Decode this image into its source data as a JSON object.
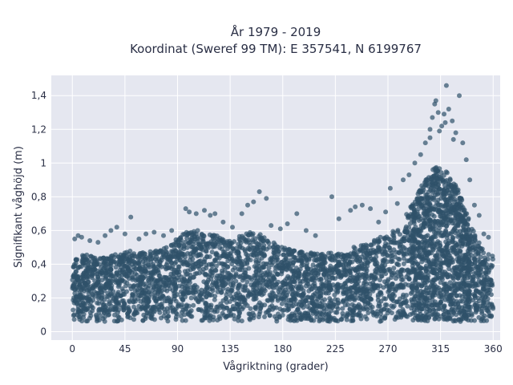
{
  "chart_data": {
    "type": "scatter",
    "title_line1": "År 1979 - 2019",
    "title_line2": "Koordinat (Sweref 99 TM): E 357541, N 6199767",
    "xlabel": "Vågriktning (grader)",
    "ylabel": "Signifikant våghöjd (m)",
    "xlim": [
      -18,
      366
    ],
    "ylim": [
      -0.05,
      1.52
    ],
    "x_ticks": [
      0,
      45,
      90,
      135,
      180,
      225,
      270,
      315,
      360
    ],
    "x_tick_labels": [
      "0",
      "45",
      "90",
      "135",
      "180",
      "225",
      "270",
      "315",
      "360"
    ],
    "y_ticks": [
      0,
      0.2,
      0.4,
      0.6,
      0.8,
      1.0,
      1.2,
      1.4
    ],
    "y_tick_labels": [
      "0",
      "0,2",
      "0,4",
      "0,6",
      "0,8",
      "1",
      "1,2",
      "1,4"
    ],
    "grid": true,
    "background_color": "#e5e7f0",
    "marker_color": "#2f5169",
    "marker_opacity": 0.7,
    "envelope": {
      "x": [
        0,
        10,
        20,
        30,
        40,
        50,
        60,
        70,
        80,
        90,
        100,
        110,
        120,
        130,
        140,
        150,
        160,
        170,
        180,
        190,
        200,
        210,
        220,
        230,
        240,
        250,
        260,
        270,
        280,
        290,
        300,
        310,
        320,
        330,
        340,
        350,
        360
      ],
      "y_max": [
        0.44,
        0.46,
        0.44,
        0.45,
        0.47,
        0.48,
        0.47,
        0.48,
        0.5,
        0.56,
        0.6,
        0.6,
        0.58,
        0.55,
        0.55,
        0.6,
        0.58,
        0.55,
        0.5,
        0.48,
        0.47,
        0.47,
        0.47,
        0.46,
        0.5,
        0.52,
        0.55,
        0.58,
        0.62,
        0.75,
        0.88,
        0.98,
        0.95,
        0.85,
        0.65,
        0.5,
        0.45
      ],
      "y_min": 0.06
    },
    "scattered_points": [
      {
        "x": 2,
        "y": 0.55
      },
      {
        "x": 5,
        "y": 0.57
      },
      {
        "x": 8,
        "y": 0.56
      },
      {
        "x": 15,
        "y": 0.54
      },
      {
        "x": 22,
        "y": 0.53
      },
      {
        "x": 28,
        "y": 0.57
      },
      {
        "x": 33,
        "y": 0.6
      },
      {
        "x": 38,
        "y": 0.62
      },
      {
        "x": 45,
        "y": 0.58
      },
      {
        "x": 50,
        "y": 0.68
      },
      {
        "x": 57,
        "y": 0.55
      },
      {
        "x": 63,
        "y": 0.58
      },
      {
        "x": 70,
        "y": 0.59
      },
      {
        "x": 78,
        "y": 0.57
      },
      {
        "x": 85,
        "y": 0.6
      },
      {
        "x": 97,
        "y": 0.73
      },
      {
        "x": 100,
        "y": 0.71
      },
      {
        "x": 106,
        "y": 0.7
      },
      {
        "x": 113,
        "y": 0.72
      },
      {
        "x": 118,
        "y": 0.69
      },
      {
        "x": 122,
        "y": 0.7
      },
      {
        "x": 129,
        "y": 0.65
      },
      {
        "x": 137,
        "y": 0.62
      },
      {
        "x": 145,
        "y": 0.7
      },
      {
        "x": 150,
        "y": 0.75
      },
      {
        "x": 155,
        "y": 0.77
      },
      {
        "x": 160,
        "y": 0.83
      },
      {
        "x": 166,
        "y": 0.79
      },
      {
        "x": 170,
        "y": 0.63
      },
      {
        "x": 178,
        "y": 0.61
      },
      {
        "x": 184,
        "y": 0.64
      },
      {
        "x": 192,
        "y": 0.7
      },
      {
        "x": 200,
        "y": 0.6
      },
      {
        "x": 208,
        "y": 0.57
      },
      {
        "x": 222,
        "y": 0.8
      },
      {
        "x": 228,
        "y": 0.67
      },
      {
        "x": 238,
        "y": 0.72
      },
      {
        "x": 242,
        "y": 0.74
      },
      {
        "x": 248,
        "y": 0.75
      },
      {
        "x": 255,
        "y": 0.73
      },
      {
        "x": 262,
        "y": 0.65
      },
      {
        "x": 268,
        "y": 0.71
      },
      {
        "x": 272,
        "y": 0.85
      },
      {
        "x": 278,
        "y": 0.76
      },
      {
        "x": 283,
        "y": 0.9
      },
      {
        "x": 288,
        "y": 0.93
      },
      {
        "x": 293,
        "y": 1.0
      },
      {
        "x": 298,
        "y": 1.05
      },
      {
        "x": 302,
        "y": 1.12
      },
      {
        "x": 306,
        "y": 1.2
      },
      {
        "x": 308,
        "y": 1.27
      },
      {
        "x": 310,
        "y": 1.35
      },
      {
        "x": 311,
        "y": 1.37
      },
      {
        "x": 313,
        "y": 1.3
      },
      {
        "x": 316,
        "y": 1.22
      },
      {
        "x": 318,
        "y": 1.29
      },
      {
        "x": 320,
        "y": 1.46
      },
      {
        "x": 322,
        "y": 1.32
      },
      {
        "x": 325,
        "y": 1.25
      },
      {
        "x": 328,
        "y": 1.18
      },
      {
        "x": 331,
        "y": 1.4
      },
      {
        "x": 334,
        "y": 1.12
      },
      {
        "x": 337,
        "y": 1.02
      },
      {
        "x": 340,
        "y": 0.9
      },
      {
        "x": 344,
        "y": 0.75
      },
      {
        "x": 348,
        "y": 0.69
      },
      {
        "x": 352,
        "y": 0.58
      },
      {
        "x": 356,
        "y": 0.56
      },
      {
        "x": 306,
        "y": 1.15
      },
      {
        "x": 314,
        "y": 1.19
      },
      {
        "x": 319,
        "y": 1.24
      },
      {
        "x": 326,
        "y": 1.14
      }
    ]
  }
}
